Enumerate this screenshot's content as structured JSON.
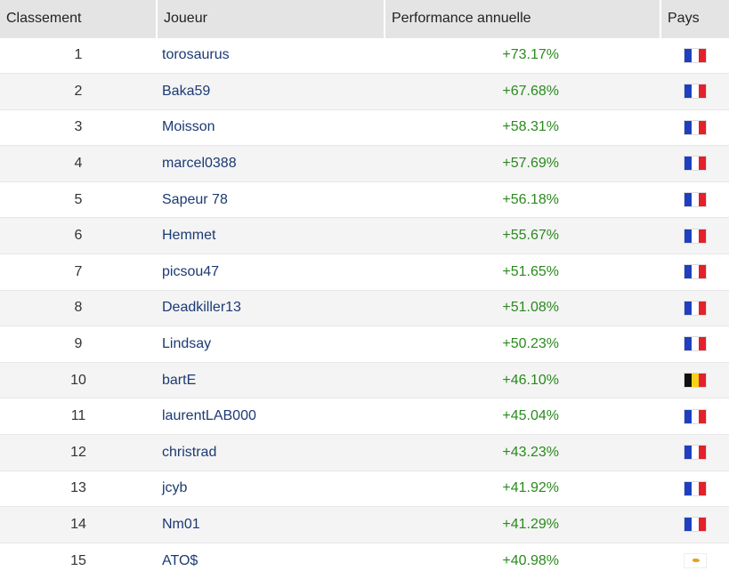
{
  "table": {
    "headers": {
      "rank": "Classement",
      "player": "Joueur",
      "performance": "Performance annuelle",
      "country": "Pays"
    },
    "rows": [
      {
        "rank": "1",
        "player": "torosaurus",
        "performance": "+73.17%",
        "country": "fr"
      },
      {
        "rank": "2",
        "player": "Baka59",
        "performance": "+67.68%",
        "country": "fr"
      },
      {
        "rank": "3",
        "player": "Moisson",
        "performance": "+58.31%",
        "country": "fr"
      },
      {
        "rank": "4",
        "player": "marcel0388",
        "performance": "+57.69%",
        "country": "fr"
      },
      {
        "rank": "5",
        "player": "Sapeur 78",
        "performance": "+56.18%",
        "country": "fr"
      },
      {
        "rank": "6",
        "player": "Hemmet",
        "performance": "+55.67%",
        "country": "fr"
      },
      {
        "rank": "7",
        "player": "picsou47",
        "performance": "+51.65%",
        "country": "fr"
      },
      {
        "rank": "8",
        "player": "Deadkiller13",
        "performance": "+51.08%",
        "country": "fr"
      },
      {
        "rank": "9",
        "player": "Lindsay",
        "performance": "+50.23%",
        "country": "fr"
      },
      {
        "rank": "10",
        "player": "bartE",
        "performance": "+46.10%",
        "country": "be"
      },
      {
        "rank": "11",
        "player": "laurentLAB000",
        "performance": "+45.04%",
        "country": "fr"
      },
      {
        "rank": "12",
        "player": "christrad",
        "performance": "+43.23%",
        "country": "fr"
      },
      {
        "rank": "13",
        "player": "jcyb",
        "performance": "+41.92%",
        "country": "fr"
      },
      {
        "rank": "14",
        "player": "Nm01",
        "performance": "+41.29%",
        "country": "fr"
      },
      {
        "rank": "15",
        "player": "ATO$",
        "performance": "+40.98%",
        "country": "cy"
      }
    ]
  },
  "colors": {
    "header_bg": "#e4e4e4",
    "player_link": "#1b3a73",
    "performance_positive": "#2a8a1e",
    "row_alt_bg": "#f4f4f4"
  }
}
